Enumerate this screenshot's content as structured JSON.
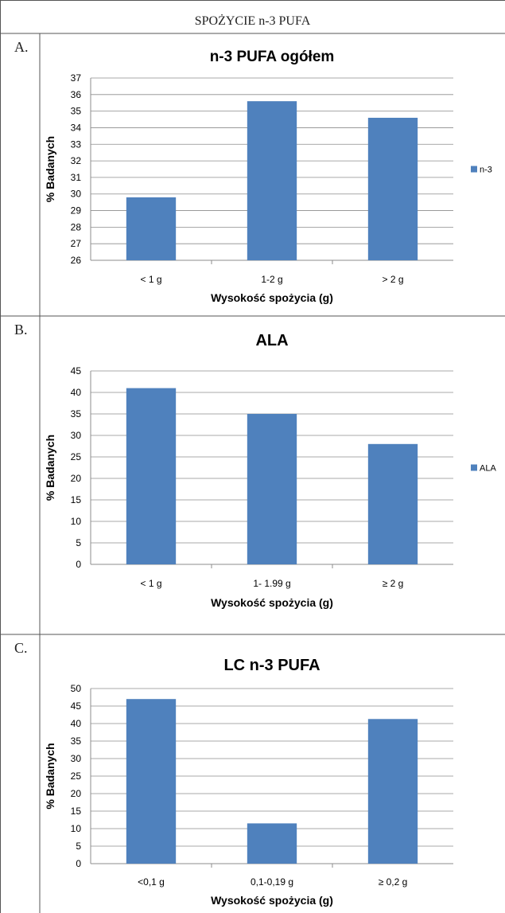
{
  "header": {
    "title": "SPOŻYCIE n-3 PUFA"
  },
  "chart_data": [
    {
      "panel_label": "A.",
      "type": "bar",
      "title": "n-3 PUFA ogółem",
      "xlabel": "Wysokość spożycia (g)",
      "ylabel": "% Badanych",
      "categories": [
        "< 1 g",
        "1-2 g",
        "> 2 g"
      ],
      "series": [
        {
          "name": "n-3",
          "values": [
            29.8,
            35.6,
            34.6
          ]
        }
      ],
      "ylim": [
        26,
        37
      ],
      "yticks": [
        26,
        27,
        28,
        29,
        30,
        31,
        32,
        33,
        34,
        35,
        36,
        37
      ],
      "grid": true,
      "legend": "right",
      "bar_color": "#4f81bd"
    },
    {
      "panel_label": "B.",
      "type": "bar",
      "title": "ALA",
      "xlabel": "Wysokość spożycia (g)",
      "ylabel": "% Badanych",
      "categories": [
        "< 1 g",
        "1- 1.99 g",
        "≥ 2 g"
      ],
      "series": [
        {
          "name": "ALA",
          "values": [
            41,
            35,
            28
          ]
        }
      ],
      "ylim": [
        0,
        45
      ],
      "yticks": [
        0,
        5,
        10,
        15,
        20,
        25,
        30,
        35,
        40,
        45
      ],
      "grid": true,
      "legend": "right",
      "bar_color": "#4f81bd"
    },
    {
      "panel_label": "C.",
      "type": "bar",
      "title": "LC n-3 PUFA",
      "xlabel": "Wysokość spożycia (g)",
      "ylabel": "% Badanych",
      "categories": [
        "<0,1 g",
        "0,1-0,19 g",
        "≥ 0,2 g"
      ],
      "series": [
        {
          "name": "",
          "values": [
            47,
            11.5,
            41.3
          ]
        }
      ],
      "ylim": [
        0,
        50
      ],
      "yticks": [
        0,
        5,
        10,
        15,
        20,
        25,
        30,
        35,
        40,
        45,
        50
      ],
      "grid": true,
      "legend": "none",
      "bar_color": "#4f81bd"
    }
  ]
}
